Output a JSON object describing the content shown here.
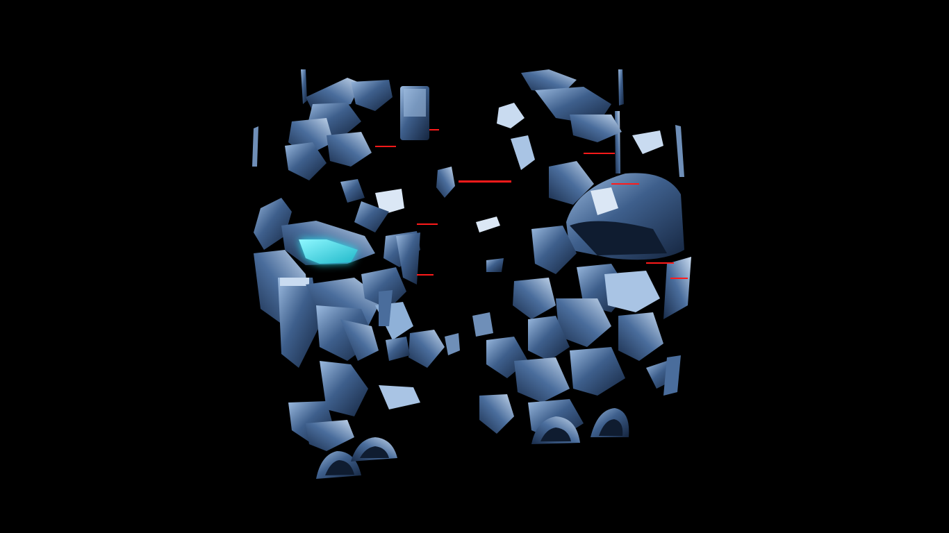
{
  "scene": {
    "background_color": "#000000",
    "palette": {
      "shard_dark": "#1f3556",
      "shard_mid": "#3e5f8c",
      "shard_light": "#8fb1d8",
      "shard_highlight": "#dbe7f5",
      "visor_glow": "#35e3ee",
      "glitch_red": "#ff1a1a"
    },
    "subject": "shattered-robot-fragments",
    "accent": "cyan-visor"
  }
}
